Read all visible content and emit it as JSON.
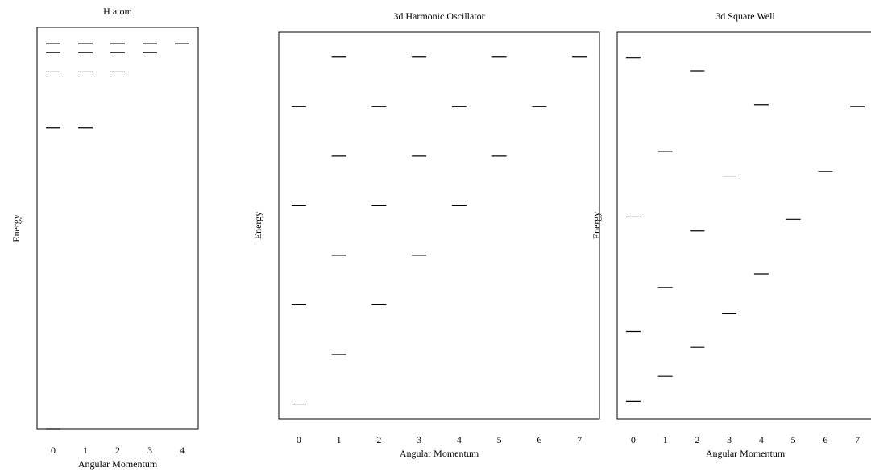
{
  "chart_data": [
    {
      "type": "scatter",
      "title": "H atom",
      "xlabel": "Angular Momentum",
      "ylabel": "Energy",
      "x_ticks": [
        0,
        1,
        2,
        3,
        4
      ],
      "xlim": [
        -0.5,
        4.5
      ],
      "ylim": [
        -1.0,
        0.0
      ],
      "grid": false,
      "legend": "none",
      "marker": "horizontal-dash",
      "levels": [
        {
          "l": 0,
          "E": -1.0
        },
        {
          "l": 0,
          "E": -0.25
        },
        {
          "l": 0,
          "E": -0.1111
        },
        {
          "l": 0,
          "E": -0.0625
        },
        {
          "l": 0,
          "E": -0.04
        },
        {
          "l": 1,
          "E": -0.25
        },
        {
          "l": 1,
          "E": -0.1111
        },
        {
          "l": 1,
          "E": -0.0625
        },
        {
          "l": 1,
          "E": -0.04
        },
        {
          "l": 2,
          "E": -0.1111
        },
        {
          "l": 2,
          "E": -0.0625
        },
        {
          "l": 2,
          "E": -0.04
        },
        {
          "l": 3,
          "E": -0.0625
        },
        {
          "l": 3,
          "E": -0.04
        },
        {
          "l": 4,
          "E": -0.04
        }
      ]
    },
    {
      "type": "scatter",
      "title": "3d Harmonic Oscillator",
      "xlabel": "Angular Momentum",
      "ylabel": "Energy",
      "x_ticks": [
        0,
        1,
        2,
        3,
        4,
        5,
        6,
        7
      ],
      "xlim": [
        -0.5,
        7.5
      ],
      "ylim": [
        1.2,
        9.0
      ],
      "grid": false,
      "legend": "none",
      "marker": "horizontal-dash",
      "levels": [
        {
          "l": 0,
          "E": 1.5
        },
        {
          "l": 0,
          "E": 3.5
        },
        {
          "l": 0,
          "E": 5.5
        },
        {
          "l": 0,
          "E": 7.5
        },
        {
          "l": 1,
          "E": 2.5
        },
        {
          "l": 1,
          "E": 4.5
        },
        {
          "l": 1,
          "E": 6.5
        },
        {
          "l": 1,
          "E": 8.5
        },
        {
          "l": 2,
          "E": 3.5
        },
        {
          "l": 2,
          "E": 5.5
        },
        {
          "l": 2,
          "E": 7.5
        },
        {
          "l": 3,
          "E": 4.5
        },
        {
          "l": 3,
          "E": 6.5
        },
        {
          "l": 3,
          "E": 8.5
        },
        {
          "l": 4,
          "E": 5.5
        },
        {
          "l": 4,
          "E": 7.5
        },
        {
          "l": 5,
          "E": 6.5
        },
        {
          "l": 5,
          "E": 8.5
        },
        {
          "l": 6,
          "E": 7.5
        },
        {
          "l": 7,
          "E": 8.5
        }
      ]
    },
    {
      "type": "scatter",
      "title": "3d Square Well",
      "xlabel": "Angular Momentum",
      "ylabel": "Energy",
      "x_ticks": [
        0,
        1,
        2,
        3,
        4,
        5,
        6,
        7
      ],
      "xlim": [
        -0.5,
        7.5
      ],
      "ylim": [
        0.0,
        1.0
      ],
      "grid": false,
      "legend": "none",
      "marker": "horizontal-dash",
      "levels": [
        {
          "l": 0,
          "E": 0.045
        },
        {
          "l": 0,
          "E": 0.226
        },
        {
          "l": 0,
          "E": 0.522
        },
        {
          "l": 0,
          "E": 0.934
        },
        {
          "l": 1,
          "E": 0.11
        },
        {
          "l": 1,
          "E": 0.34
        },
        {
          "l": 1,
          "E": 0.692
        },
        {
          "l": 2,
          "E": 0.185
        },
        {
          "l": 2,
          "E": 0.486
        },
        {
          "l": 2,
          "E": 0.9
        },
        {
          "l": 3,
          "E": 0.272
        },
        {
          "l": 3,
          "E": 0.628
        },
        {
          "l": 4,
          "E": 0.375
        },
        {
          "l": 4,
          "E": 0.813
        },
        {
          "l": 5,
          "E": 0.516
        },
        {
          "l": 6,
          "E": 0.64
        },
        {
          "l": 7,
          "E": 0.808
        }
      ]
    }
  ]
}
